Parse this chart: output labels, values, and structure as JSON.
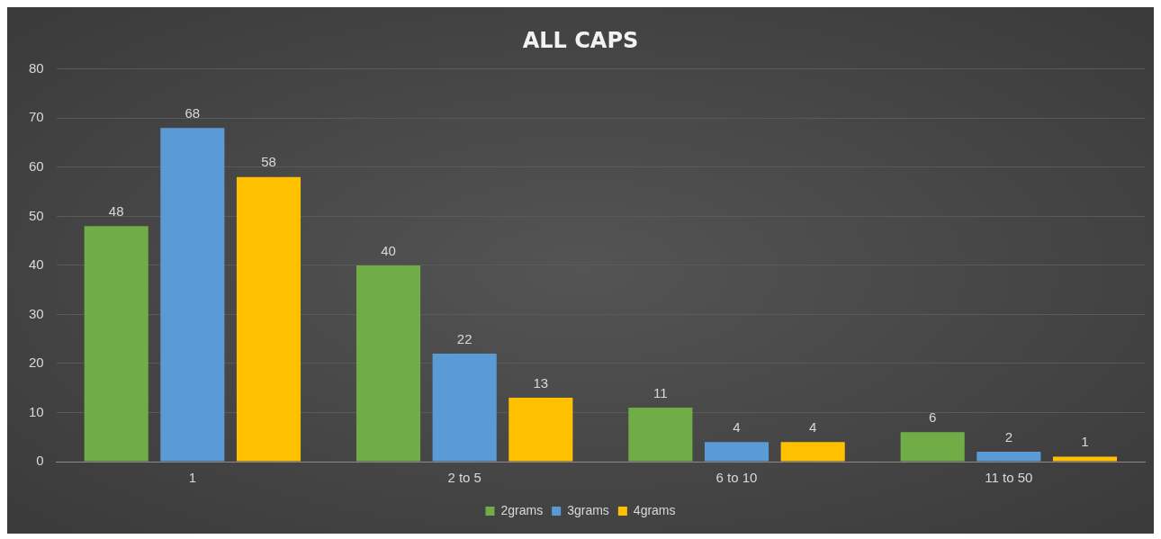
{
  "chart_data": {
    "type": "bar",
    "title": "ALL CAPS",
    "categories": [
      "1",
      "2 to 5",
      "6 to 10",
      "11 to 50"
    ],
    "series": [
      {
        "name": "2grams",
        "color": "#70ad47",
        "values": [
          48,
          40,
          11,
          6
        ]
      },
      {
        "name": "3grams",
        "color": "#5b9bd5",
        "values": [
          68,
          22,
          4,
          2
        ]
      },
      {
        "name": "4grams",
        "color": "#ffc000",
        "values": [
          58,
          13,
          4,
          1
        ]
      }
    ],
    "ylim": [
      0,
      80
    ],
    "yticks": [
      0,
      10,
      20,
      30,
      40,
      50,
      60,
      70,
      80
    ],
    "grid": "y",
    "legend": "bottom",
    "data_labels": true
  }
}
